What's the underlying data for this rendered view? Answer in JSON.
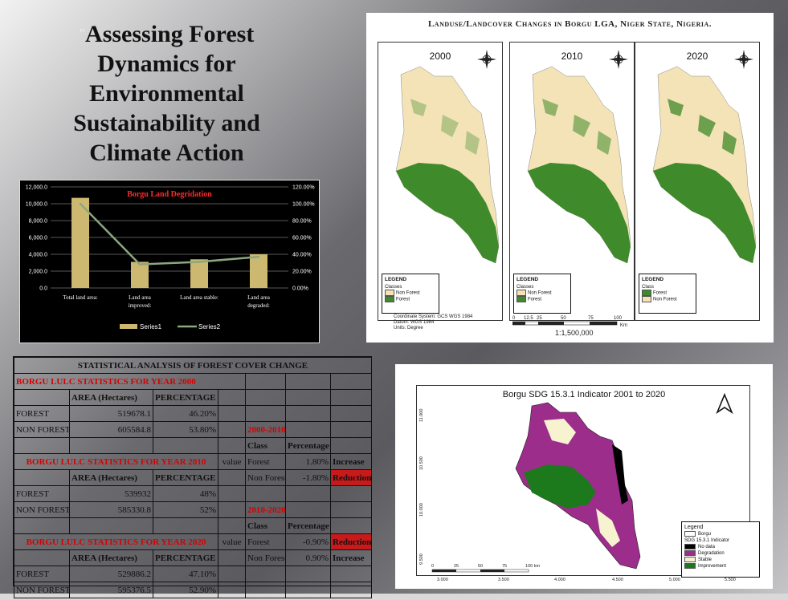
{
  "title": {
    "quote": "\"",
    "text": "Assessing Forest Dynamics for Environmental Sustainability and Climate Action"
  },
  "chart_data": {
    "type": "bar",
    "title": "Borgu Land Degridation",
    "categories": [
      "Total land area:",
      "Land area improved:",
      "Land area stable:",
      "Land area degraded:"
    ],
    "category_lines": [
      [
        "Total land area:"
      ],
      [
        "Land area",
        "improved:"
      ],
      [
        "Land area stable:"
      ],
      [
        "Land area",
        "degraded:"
      ]
    ],
    "series": [
      {
        "name": "Series1",
        "kind": "bar",
        "axis": "left",
        "values": [
          10700,
          3100,
          3400,
          4000
        ],
        "color": "#cdb871"
      },
      {
        "name": "Series2",
        "kind": "line",
        "axis": "right",
        "values": [
          100,
          28,
          31,
          37
        ],
        "color": "#8aa77f"
      }
    ],
    "yleft": {
      "min": 0,
      "max": 12000,
      "ticks": [
        "0.0",
        "2,000.0",
        "4,000.0",
        "6,000.0",
        "8,000.0",
        "10,000.0",
        "12,000.0"
      ]
    },
    "yright": {
      "min": 0,
      "max": 120,
      "ticks": [
        "0.00%",
        "20.00%",
        "40.00%",
        "60.00%",
        "80.00%",
        "100.00%",
        "120.00%"
      ]
    },
    "grid": true,
    "legend_position": "bottom"
  },
  "map": {
    "title": "Landuse/Landcover Changes in Borgu LGA, Niger State, Nigeria.",
    "panels": [
      {
        "year": "2000",
        "legend_title": "LEGEND",
        "classes_label": "Classes",
        "classes": [
          {
            "label": "Non Forest",
            "color": "#f3e3b7"
          },
          {
            "label": "Forest",
            "color": "#3f8a2a"
          }
        ]
      },
      {
        "year": "2010",
        "legend_title": "LEGEND",
        "classes_label": "Classes",
        "classes": [
          {
            "label": "Non Forest",
            "color": "#f3e3b7"
          },
          {
            "label": "Forest",
            "color": "#3f8a2a"
          }
        ]
      },
      {
        "year": "2020",
        "legend_title": "LEGEND",
        "classes_label": "Class",
        "classes": [
          {
            "label": "Forest",
            "color": "#3f8a2a"
          },
          {
            "label": "Non Forest",
            "color": "#f3e3b7"
          }
        ]
      }
    ],
    "footer": [
      "Coordinate System: GCS WGS 1984",
      "Datum: WGS 1984",
      "Units: Degree"
    ],
    "scale_ticks": [
      "0",
      "12.5",
      "25",
      "50",
      "75",
      "100"
    ],
    "scale_unit": "Km",
    "scale_ratio": "1:1,500,000"
  },
  "stats": {
    "title": "STATISTICAL ANALYSIS OF FOREST COVER CHANGE",
    "y2000": {
      "heading": "BORGU LULC STATISTICS FOR YEAR 2000",
      "col_area": "AREA (Hectares)",
      "col_pct": "PERCENTAGE",
      "rows": [
        {
          "label": "FOREST",
          "area": "519678.1",
          "pct": "46.20%"
        },
        {
          "label": "NON FOREST",
          "area": "605584.8",
          "pct": "53.80%"
        }
      ]
    },
    "y2010": {
      "heading": "BORGU LULC STATISTICS FOR YEAR 2010",
      "value": "value",
      "col_area": "AREA (Hectares)",
      "col_pct": "PERCENTAGE",
      "rows": [
        {
          "label": "FOREST",
          "area": "539932",
          "pct": "48%"
        },
        {
          "label": "NON  FOREST",
          "area": "585330.8",
          "pct": "52%"
        }
      ]
    },
    "y2020": {
      "heading": "BORGU LULC STATISTICS FOR YEAR 2020",
      "value": "value",
      "col_area": "AREA (Hectares)",
      "col_pct": "PERCENTAGE",
      "rows": [
        {
          "label": "FOREST",
          "area": "529886.2",
          "pct": "47.10%"
        },
        {
          "label": "NON FOREST",
          "area": "595376.5",
          "pct": "52.90%"
        }
      ]
    },
    "change1": {
      "period": "2000-2010",
      "col_class": "Class",
      "col_pct": "Percentage",
      "rows": [
        {
          "class": "Forest",
          "pct": "1.80%",
          "status": "Increase"
        },
        {
          "class": "Non Forest",
          "pct": "-1.80%",
          "status": "Reduction"
        }
      ]
    },
    "change2": {
      "period": "2010-2020",
      "col_class": "Class",
      "col_pct": "Percentage",
      "rows": [
        {
          "class": "Forest",
          "pct": "-0.90%",
          "status": "Reduction"
        },
        {
          "class": "Non Forest",
          "pct": "0.90%",
          "status": "Increase"
        }
      ]
    }
  },
  "sdg": {
    "title": "Borgu SDG 15.3.1 Indicator 2001 to 2020",
    "legend_title": "Legend",
    "borgu_label": "Borgu",
    "indicator_label": "SDG 15.3.1 Indicator",
    "classes": [
      {
        "label": "No data",
        "color": "#000000"
      },
      {
        "label": "Degradation",
        "color": "#9c2d8a"
      },
      {
        "label": "Stable",
        "color": "#f7f3d0"
      },
      {
        "label": "Improvement",
        "color": "#1c7a1c"
      }
    ],
    "scale_ticks": [
      "0",
      "25",
      "50",
      "75",
      "100 km"
    ],
    "x_ticks": [
      "3.000",
      "3.500",
      "4.000",
      "4.500",
      "5.000",
      "5.500"
    ],
    "y_ticks": [
      "11.000",
      "10.500",
      "10.000",
      "9.500"
    ]
  }
}
